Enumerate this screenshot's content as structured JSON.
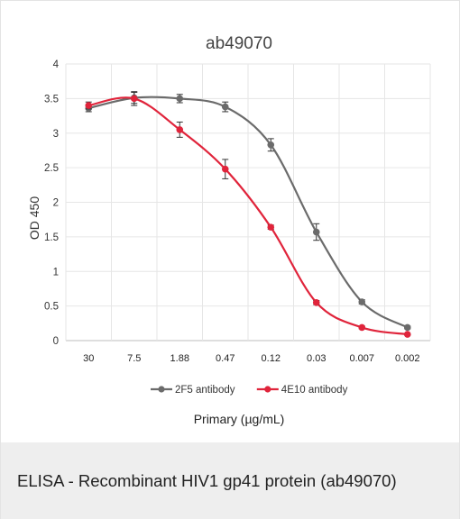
{
  "caption": "ELISA - Recombinant HIV1 gp41 protein (ab49070)",
  "chart_data": {
    "type": "line",
    "title": "ab49070",
    "xlabel": "Primary (µg/mL)",
    "ylabel": "OD 450",
    "categories": [
      "30",
      "7.5",
      "1.88",
      "0.47",
      "0.12",
      "0.03",
      "0.007",
      "0.002"
    ],
    "ylim": [
      0,
      4
    ],
    "yticks": [
      "0",
      "0.5",
      "1",
      "1.5",
      "2",
      "2.5",
      "3",
      "3.5",
      "4"
    ],
    "grid": true,
    "legend_position": "bottom",
    "series": [
      {
        "name": "2F5 antibody",
        "color": "#6b6b6b",
        "values": [
          3.36,
          3.51,
          3.5,
          3.38,
          2.83,
          1.57,
          0.56,
          0.19
        ],
        "errors": [
          0.05,
          0.08,
          0.06,
          0.07,
          0.09,
          0.12,
          0.03,
          0.02
        ]
      },
      {
        "name": "4E10 antibody",
        "color": "#e0243b",
        "values": [
          3.4,
          3.5,
          3.05,
          2.48,
          1.64,
          0.55,
          0.19,
          0.09
        ],
        "errors": [
          0.05,
          0.1,
          0.11,
          0.14,
          0.03,
          0.03,
          0.02,
          0.01
        ]
      }
    ]
  }
}
